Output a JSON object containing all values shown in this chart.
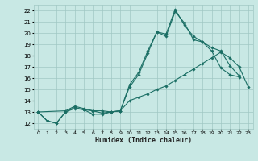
{
  "title": "",
  "xlabel": "Humidex (Indice chaleur)",
  "xlim": [
    -0.5,
    23.5
  ],
  "ylim": [
    11.5,
    22.5
  ],
  "yticks": [
    12,
    13,
    14,
    15,
    16,
    17,
    18,
    19,
    20,
    21,
    22
  ],
  "xticks": [
    0,
    1,
    2,
    3,
    4,
    5,
    6,
    7,
    8,
    9,
    10,
    11,
    12,
    13,
    14,
    15,
    16,
    17,
    18,
    19,
    20,
    21,
    22,
    23
  ],
  "background_color": "#c8e8e4",
  "grid_color": "#a0c8c4",
  "line_color": "#1a6e64",
  "lines": [
    {
      "x": [
        0,
        1,
        2,
        3,
        4,
        5,
        6,
        7,
        8,
        9,
        10,
        11,
        12,
        13,
        14,
        15,
        16,
        17,
        18,
        19,
        20,
        21,
        22,
        23
      ],
      "y": [
        13.0,
        12.2,
        12.0,
        13.0,
        13.3,
        13.2,
        12.8,
        12.8,
        13.0,
        13.1,
        14.0,
        14.3,
        14.6,
        15.0,
        15.3,
        15.8,
        16.3,
        16.8,
        17.3,
        17.8,
        18.3,
        17.8,
        17.0,
        15.2
      ]
    },
    {
      "x": [
        0,
        1,
        2,
        3,
        4,
        5,
        6,
        7,
        8,
        9,
        10,
        11,
        12,
        13,
        14,
        15,
        16,
        17,
        18,
        19,
        20,
        21,
        22
      ],
      "y": [
        13.0,
        12.2,
        12.0,
        13.0,
        13.4,
        13.2,
        13.1,
        12.9,
        13.0,
        13.1,
        15.2,
        16.3,
        18.2,
        20.1,
        19.7,
        21.9,
        20.9,
        19.4,
        19.2,
        18.4,
        16.9,
        16.3,
        16.1
      ]
    },
    {
      "x": [
        0,
        3,
        4,
        5,
        6,
        7,
        8,
        9,
        10,
        11,
        12,
        13,
        14,
        15,
        16,
        17,
        18,
        19,
        20,
        21,
        22
      ],
      "y": [
        13.0,
        13.1,
        13.5,
        13.3,
        13.1,
        13.1,
        13.0,
        13.1,
        15.4,
        16.5,
        18.4,
        20.1,
        19.9,
        22.1,
        20.7,
        19.7,
        19.2,
        18.7,
        18.4,
        17.1,
        16.2
      ]
    }
  ]
}
